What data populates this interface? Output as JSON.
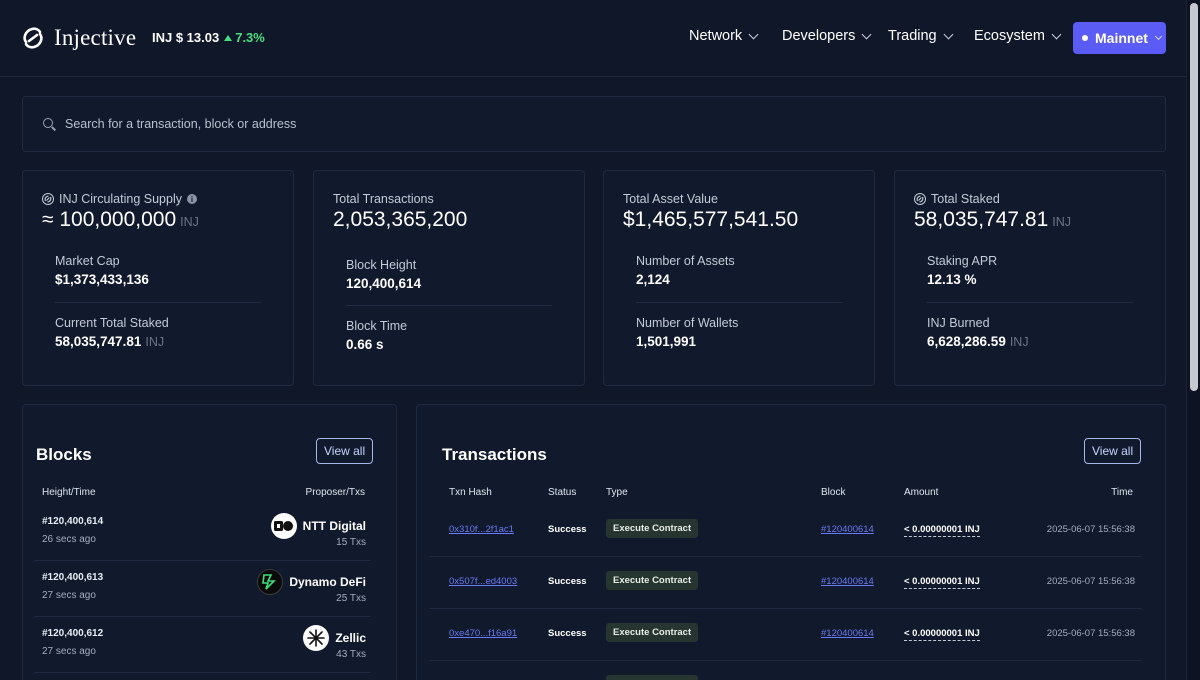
{
  "header": {
    "brand": "Injective",
    "price_label": "INJ $ 13.03",
    "price_change": "7.3%",
    "nav": [
      "Network",
      "Developers",
      "Trading",
      "Ecosystem"
    ],
    "network_button": "Mainnet"
  },
  "search": {
    "placeholder": "Search for a transaction, block or address"
  },
  "stats": [
    {
      "label": "INJ Circulating Supply",
      "value": "≈ 100,000,000",
      "unit": "INJ",
      "items": [
        {
          "label": "Market Cap",
          "value": "$1,373,433,136",
          "unit": ""
        },
        {
          "label": "Current Total Staked",
          "value": "58,035,747.81",
          "unit": "INJ"
        }
      ]
    },
    {
      "label": "Total Transactions",
      "value": "2,053,365,200",
      "unit": "",
      "items": [
        {
          "label": "Block Height",
          "value": "120,400,614",
          "unit": ""
        },
        {
          "label": "Block Time",
          "value": "0.66 s",
          "unit": ""
        }
      ]
    },
    {
      "label": "Total Asset Value",
      "value": "$1,465,577,541.50",
      "unit": "",
      "items": [
        {
          "label": "Number of Assets",
          "value": "2,124",
          "unit": ""
        },
        {
          "label": "Number of Wallets",
          "value": "1,501,991",
          "unit": ""
        }
      ]
    },
    {
      "label": "Total Staked",
      "value": "58,035,747.81",
      "unit": "INJ",
      "items": [
        {
          "label": "Staking APR",
          "value": "12.13 %",
          "unit": ""
        },
        {
          "label": "INJ Burned",
          "value": "6,628,286.59",
          "unit": "INJ"
        }
      ]
    }
  ],
  "blocks": {
    "title": "Blocks",
    "view_all": "View all",
    "columns": [
      "Height/Time",
      "Proposer/Txs"
    ],
    "rows": [
      {
        "height": "#120,400,614",
        "time": "26 secs ago",
        "proposer": "NTT Digital",
        "txs": "15 Txs",
        "icon": "ntt-digital-logo"
      },
      {
        "height": "#120,400,613",
        "time": "27 secs ago",
        "proposer": "Dynamo DeFi",
        "txs": "25 Txs",
        "icon": "dynamo-defi-logo"
      },
      {
        "height": "#120,400,612",
        "time": "27 secs ago",
        "proposer": "Zellic",
        "txs": "43 Txs",
        "icon": "zellic-logo"
      }
    ]
  },
  "transactions": {
    "title": "Transactions",
    "view_all": "View all",
    "columns": [
      "Txn Hash",
      "Status",
      "Type",
      "Block",
      "Amount",
      "Time"
    ],
    "rows": [
      {
        "hash": "0x310f...2f1ac1",
        "status": "Success",
        "type": "Execute Contract",
        "block": "#120400614",
        "amount": "< 0.00000001 INJ",
        "time": "2025-06-07 15:56:38"
      },
      {
        "hash": "0x507f...ed4003",
        "status": "Success",
        "type": "Execute Contract",
        "block": "#120400614",
        "amount": "< 0.00000001 INJ",
        "time": "2025-06-07 15:56:38"
      },
      {
        "hash": "0xe470...f16a91",
        "status": "Success",
        "type": "Execute Contract",
        "block": "#120400614",
        "amount": "< 0.00000001 INJ",
        "time": "2025-06-07 15:56:38"
      }
    ]
  },
  "colors": {
    "background": "#0f1728",
    "card": "#111a2c",
    "accent": "#5b5cf6",
    "positive": "#4ade80",
    "link": "#6a79f5"
  }
}
